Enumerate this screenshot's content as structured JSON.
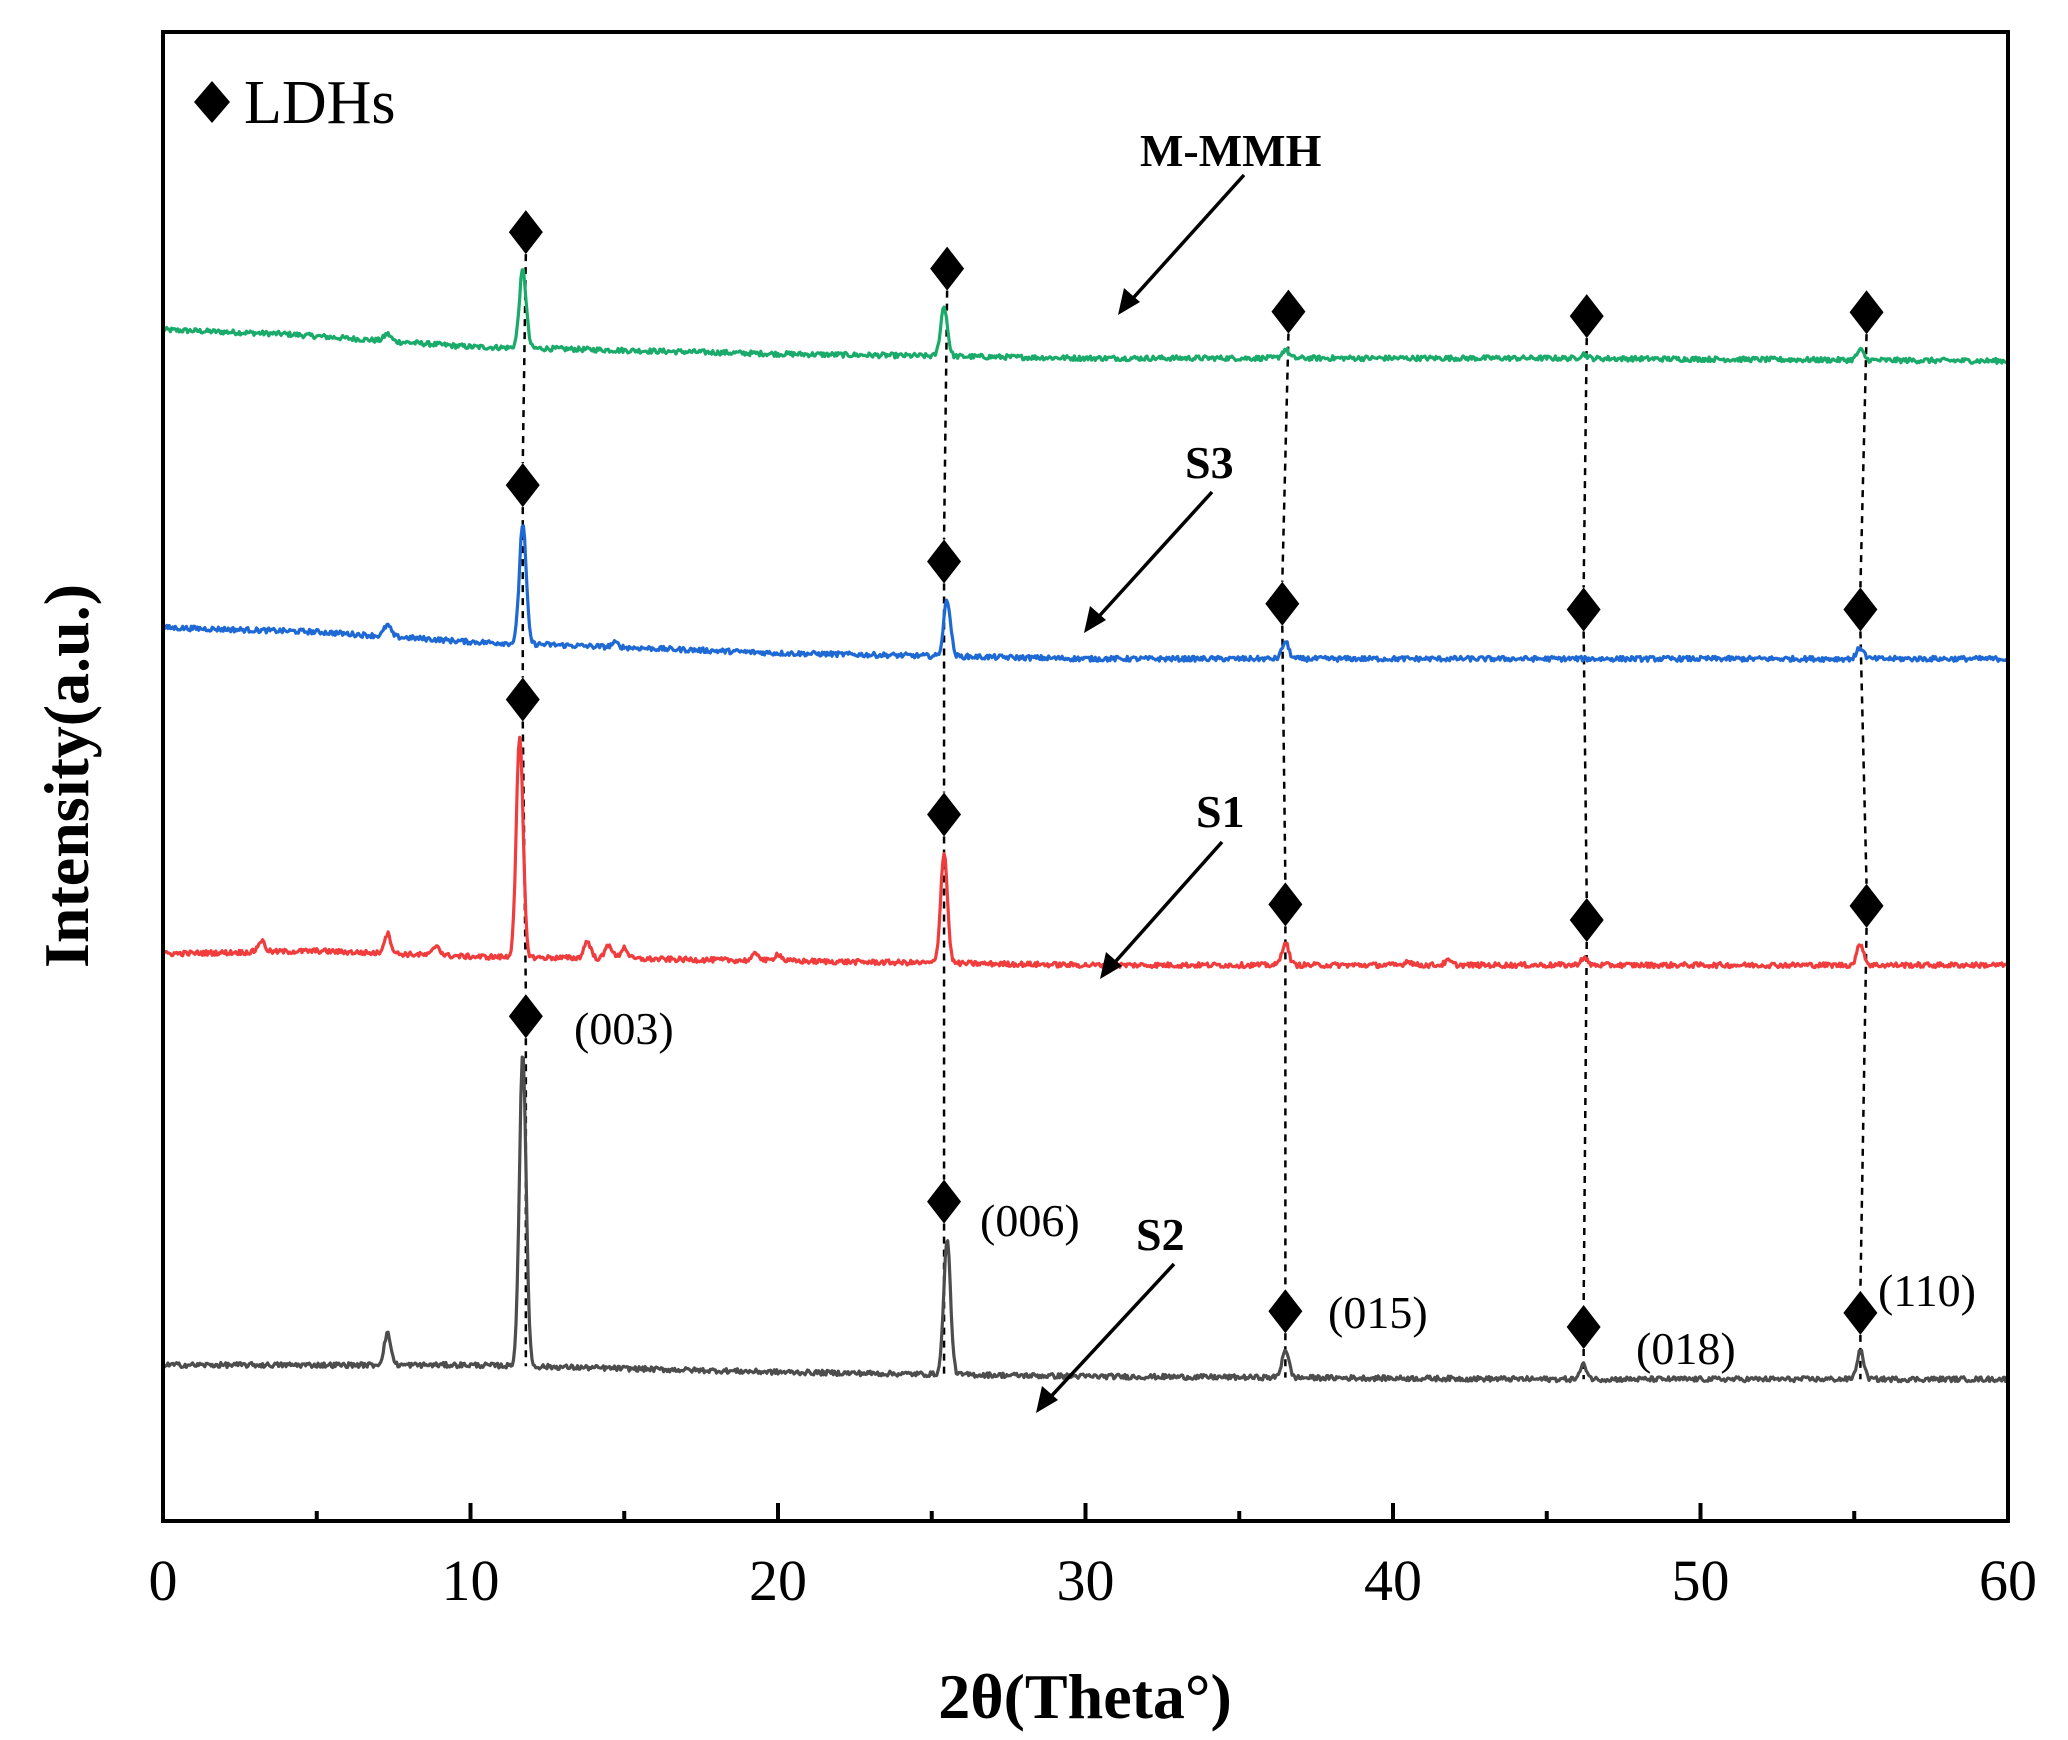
{
  "chart_data": {
    "type": "line",
    "title": "",
    "xlabel": "2θ(Theta°)",
    "ylabel": "Intensity(a.u.)",
    "xlim": [
      0,
      60
    ],
    "x_ticks": [
      0,
      10,
      20,
      30,
      40,
      50,
      60
    ],
    "x_tick_labels": [
      "0",
      "10",
      "20",
      "30",
      "40",
      "50",
      "60"
    ],
    "grid": false,
    "legend": {
      "position": "top-left",
      "entries": [
        {
          "marker": "diamond",
          "label": "LDHs"
        }
      ]
    },
    "peak_positions": [
      11.7,
      25.3,
      36.5,
      46.2,
      55.2
    ],
    "planes": [
      {
        "label": "(003)",
        "peak": 11.7
      },
      {
        "label": "(006)",
        "peak": 25.3
      },
      {
        "label": "(015)",
        "peak": 36.5
      },
      {
        "label": "(018)",
        "peak": 46.2
      },
      {
        "label": "(110)",
        "peak": 55.2
      }
    ],
    "series": [
      {
        "name": "M-MMH",
        "color": "#1aab6b",
        "baseline": [
          [
            0,
            0.0
          ],
          [
            4,
            -0.03
          ],
          [
            10,
            -0.12
          ],
          [
            20,
            -0.17
          ],
          [
            30,
            -0.2
          ],
          [
            45,
            -0.2
          ],
          [
            60,
            -0.22
          ]
        ],
        "peaks": [
          [
            7.3,
            0.05
          ],
          [
            11.7,
            0.55
          ],
          [
            25.4,
            0.35
          ],
          [
            36.5,
            0.06
          ],
          [
            46.2,
            0.03
          ],
          [
            55.2,
            0.07
          ]
        ],
        "offset": 8.4
      },
      {
        "name": "S3",
        "color": "#1f69d5",
        "baseline": [
          [
            0,
            0.0
          ],
          [
            5,
            -0.03
          ],
          [
            10,
            -0.1
          ],
          [
            15,
            -0.14
          ],
          [
            20,
            -0.18
          ],
          [
            30,
            -0.22
          ],
          [
            45,
            -0.22
          ],
          [
            60,
            -0.22
          ]
        ],
        "peaks": [
          [
            7.3,
            0.08
          ],
          [
            11.7,
            0.85
          ],
          [
            14.7,
            0.03
          ],
          [
            25.5,
            0.4
          ],
          [
            36.5,
            0.12
          ],
          [
            55.2,
            0.08
          ]
        ],
        "offset": 6.3
      },
      {
        "name": "S1",
        "color": "#f03c3c",
        "baseline": [
          [
            0,
            0.0
          ],
          [
            5,
            0.02
          ],
          [
            10,
            -0.02
          ],
          [
            20,
            -0.05
          ],
          [
            30,
            -0.08
          ],
          [
            45,
            -0.08
          ],
          [
            60,
            -0.08
          ]
        ],
        "peaks": [
          [
            3.2,
            0.08
          ],
          [
            7.3,
            0.14
          ],
          [
            8.9,
            0.07
          ],
          [
            11.6,
            1.55
          ],
          [
            13.8,
            0.12
          ],
          [
            14.5,
            0.1
          ],
          [
            15.0,
            0.08
          ],
          [
            19.3,
            0.05
          ],
          [
            20.0,
            0.05
          ],
          [
            25.4,
            0.78
          ],
          [
            36.5,
            0.16
          ],
          [
            40.5,
            0.03
          ],
          [
            41.8,
            0.03
          ],
          [
            46.2,
            0.05
          ],
          [
            55.2,
            0.15
          ]
        ],
        "offset": 4.0
      },
      {
        "name": "S2",
        "color": "#4d4d4d",
        "baseline": [
          [
            0,
            0.0
          ],
          [
            10,
            0.0
          ],
          [
            20,
            -0.05
          ],
          [
            30,
            -0.08
          ],
          [
            45,
            -0.1
          ],
          [
            60,
            -0.1
          ]
        ],
        "peaks": [
          [
            7.3,
            0.22
          ],
          [
            11.7,
            2.2
          ],
          [
            25.5,
            0.95
          ],
          [
            36.5,
            0.2
          ],
          [
            46.2,
            0.1
          ],
          [
            55.2,
            0.2
          ]
        ],
        "offset": 1.1
      }
    ],
    "diamond_markers": {
      "M-MMH": [
        11.8,
        25.5,
        36.6,
        46.3,
        55.4
      ],
      "S3": [
        11.7,
        25.4,
        36.4,
        46.2,
        55.2
      ],
      "S1": [
        11.7,
        25.4,
        36.5,
        46.3,
        55.4
      ],
      "S2": [
        11.8,
        25.4,
        36.5,
        46.2,
        55.2
      ]
    }
  }
}
